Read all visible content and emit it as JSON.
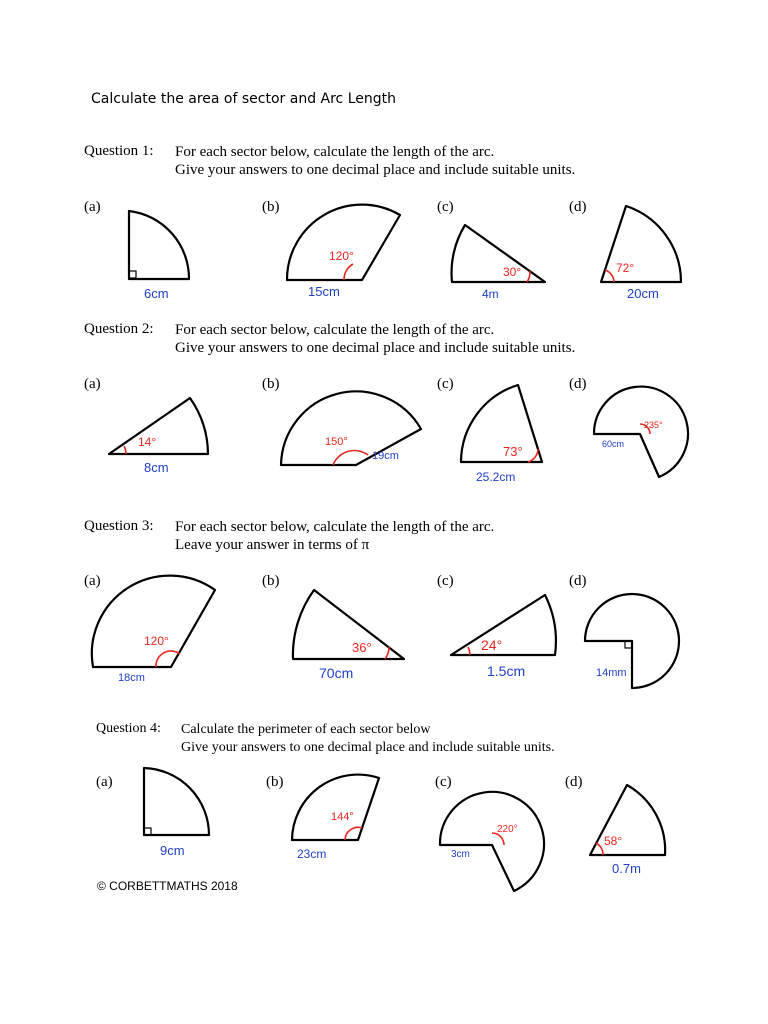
{
  "title": "Calculate the area of sector and Arc Length",
  "questions": [
    {
      "label": "Question 1:",
      "lines": [
        "For each sector below, calculate the length of the arc.",
        "Give your answers to one decimal place and include suitable units."
      ],
      "parts": [
        {
          "letter": "(a)",
          "length": "6cm",
          "angle": ""
        },
        {
          "letter": "(b)",
          "length": "15cm",
          "angle": "120°"
        },
        {
          "letter": "(c)",
          "length": "4m",
          "angle": "30°"
        },
        {
          "letter": "(d)",
          "length": "20cm",
          "angle": "72°"
        }
      ]
    },
    {
      "label": "Question 2:",
      "lines": [
        "For each sector below, calculate the length of the arc.",
        "Give your answers to one decimal place and include suitable units."
      ],
      "parts": [
        {
          "letter": "(a)",
          "length": "8cm",
          "angle": "14°"
        },
        {
          "letter": "(b)",
          "length": "19cm",
          "angle": "150°"
        },
        {
          "letter": "(c)",
          "length": "25.2cm",
          "angle": "73°"
        },
        {
          "letter": "(d)",
          "length": "60cm",
          "angle": "235°"
        }
      ]
    },
    {
      "label": "Question 3:",
      "lines": [
        "For each sector below, calculate the length of the arc.",
        "Leave your answer in terms of π"
      ],
      "parts": [
        {
          "letter": "(a)",
          "length": "18cm",
          "angle": "120°"
        },
        {
          "letter": "(b)",
          "length": "70cm",
          "angle": "36°"
        },
        {
          "letter": "(c)",
          "length": "1.5cm",
          "angle": "24°"
        },
        {
          "letter": "(d)",
          "length": "14mm",
          "angle": ""
        }
      ]
    },
    {
      "label": "Question 4:",
      "lines": [
        "Calculate the perimeter of each sector below",
        "Give your answers to one decimal place and include suitable units."
      ],
      "parts": [
        {
          "letter": "(a)",
          "length": "9cm",
          "angle": ""
        },
        {
          "letter": "(b)",
          "length": "23cm",
          "angle": "144°"
        },
        {
          "letter": "(c)",
          "length": "3cm",
          "angle": "220°"
        },
        {
          "letter": "(d)",
          "length": "0.7m",
          "angle": "58°"
        }
      ]
    }
  ],
  "footer": "© CORBETTMATHS 2018",
  "colors": {
    "length_label": "#1f3fc9",
    "angle_label": "#e8261f"
  }
}
